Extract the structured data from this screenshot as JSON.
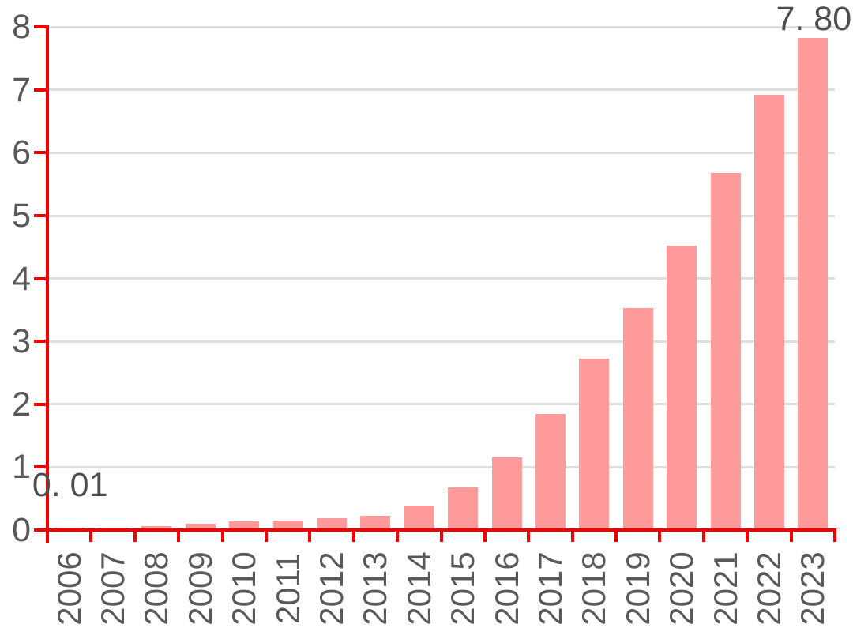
{
  "chart_data": {
    "type": "bar",
    "title": "",
    "xlabel": "",
    "ylabel": "",
    "categories": [
      "2006",
      "2007",
      "2008",
      "2009",
      "2010",
      "2011",
      "2012",
      "2013",
      "2014",
      "2015",
      "2016",
      "2017",
      "2018",
      "2019",
      "2020",
      "2021",
      "2022",
      "2023"
    ],
    "values": [
      0.01,
      0.01,
      0.04,
      0.07,
      0.11,
      0.13,
      0.16,
      0.2,
      0.36,
      0.65,
      1.13,
      1.82,
      2.7,
      3.5,
      4.5,
      5.65,
      6.9,
      7.8
    ],
    "ylim": [
      0,
      8
    ],
    "yticks": [
      "0",
      "1",
      "2",
      "3",
      "4",
      "5",
      "6",
      "7",
      "8"
    ],
    "grid": true,
    "legend": false,
    "annotations": [
      {
        "category": "2006",
        "text": "0. 01"
      },
      {
        "category": "2023",
        "text": "7. 80"
      }
    ],
    "colors": {
      "bar": "#ff9a9a",
      "axis": "#f40000",
      "grid": "#dedede",
      "text": "#595959"
    }
  }
}
